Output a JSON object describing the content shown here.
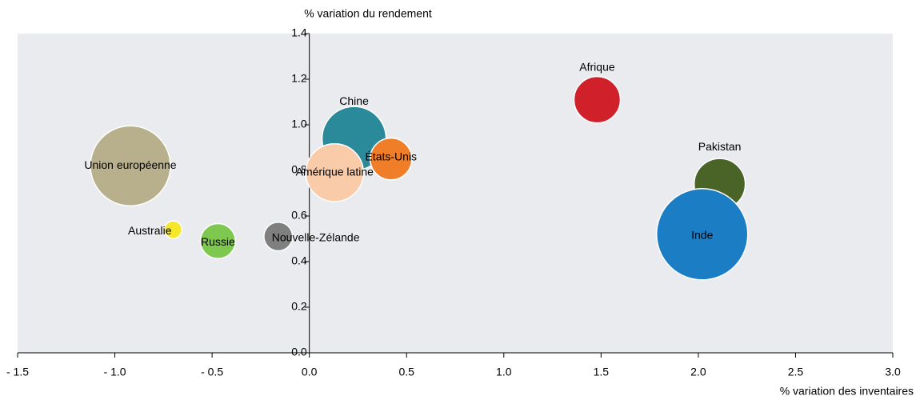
{
  "chart_data": {
    "type": "scatter",
    "x_label": "% variation des inventaires",
    "y_label": "% variation du rendement",
    "xlim": [
      -1.5,
      3.0
    ],
    "xticks": [
      {
        "value": -1.5,
        "label": "- 1.5"
      },
      {
        "value": -1.0,
        "label": "- 1.0"
      },
      {
        "value": -0.5,
        "label": "- 0.5"
      },
      {
        "value": 0,
        "label": "0.0"
      },
      {
        "value": 0.5,
        "label": "0.5"
      },
      {
        "value": 1.0,
        "label": "1.0"
      },
      {
        "value": 1.5,
        "label": "1.5"
      },
      {
        "value": 2.0,
        "label": "2.0"
      },
      {
        "value": 2.5,
        "label": "2.5"
      },
      {
        "value": 3.0,
        "label": "3.0"
      }
    ],
    "ylim": [
      0,
      1.4
    ],
    "yticks": [
      {
        "value": 0,
        "label": "0.0"
      },
      {
        "value": 0.2,
        "label": "0.2"
      },
      {
        "value": 0.4,
        "label": "0.4"
      },
      {
        "value": 0.6,
        "label": "0.6"
      },
      {
        "value": 0.8,
        "label": "0.8"
      },
      {
        "value": 1.0,
        "label": "1.0"
      },
      {
        "value": 1.2,
        "label": "1.2"
      },
      {
        "value": 1.4,
        "label": "1.4"
      }
    ],
    "labels": [
      "Union européenne",
      "Australie",
      "Russie",
      "Nouvelle-Zélande",
      "Chine",
      "États-Unis",
      "Amérique latine",
      "Afrique",
      "Pakistan",
      "Inde"
    ],
    "x": [
      -0.92,
      -0.7,
      -0.47,
      -0.16,
      0.23,
      0.42,
      0.13,
      1.48,
      2.11,
      2.02
    ],
    "values": [
      0.82,
      0.54,
      0.49,
      0.51,
      0.94,
      0.85,
      0.79,
      1.11,
      0.74,
      0.52
    ],
    "sizes": [
      25,
      1.2,
      4.8,
      3.2,
      16,
      6.8,
      13,
      8.4,
      10.2,
      32.5
    ],
    "colors": [
      "#b8b08c",
      "#f5e82a",
      "#7ec850",
      "#7f7f7f",
      "#2a8a99",
      "#f07d28",
      "#f9cba8",
      "#d0202a",
      "#4a6327",
      "#1b7dc4"
    ]
  }
}
